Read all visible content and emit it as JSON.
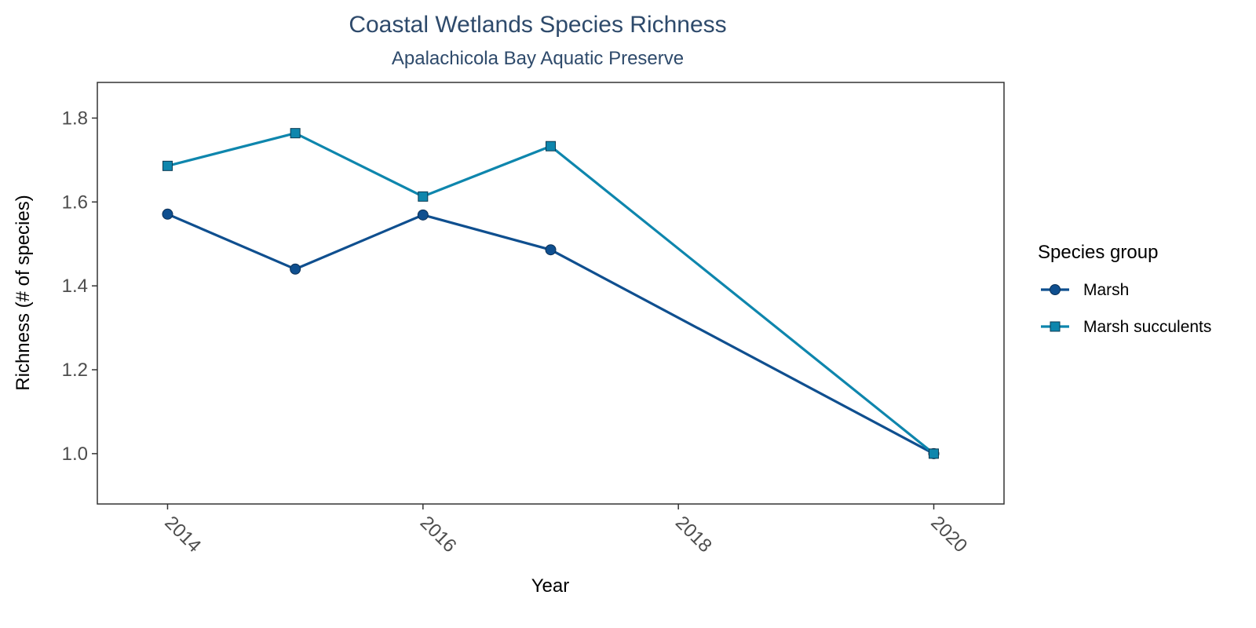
{
  "chart_data": {
    "type": "line",
    "title": "Coastal Wetlands Species Richness",
    "subtitle": "Apalachicola Bay Aquatic Preserve",
    "xlabel": "Year",
    "ylabel": "Richness (# of species)",
    "xlim": [
      2013.45,
      2020.55
    ],
    "ylim": [
      0.88,
      1.885
    ],
    "x_ticks": [
      2014,
      2016,
      2018,
      2020
    ],
    "y_ticks": [
      1.0,
      1.2,
      1.4,
      1.6,
      1.8
    ],
    "y_tick_labels": [
      "1.0",
      "1.2",
      "1.4",
      "1.6",
      "1.8"
    ],
    "grid": false,
    "legend": {
      "title": "Species group",
      "position": "right"
    },
    "series": [
      {
        "name": "Marsh",
        "marker": "circle",
        "color": "#0f4f8f",
        "x": [
          2014,
          2015,
          2016,
          2017,
          2020
        ],
        "y": [
          1.571,
          1.44,
          1.569,
          1.486,
          1.0
        ]
      },
      {
        "name": "Marsh succulents",
        "marker": "square",
        "color": "#0e86ad",
        "x": [
          2014,
          2015,
          2016,
          2017,
          2020
        ],
        "y": [
          1.686,
          1.764,
          1.613,
          1.733,
          1.0
        ]
      }
    ]
  }
}
